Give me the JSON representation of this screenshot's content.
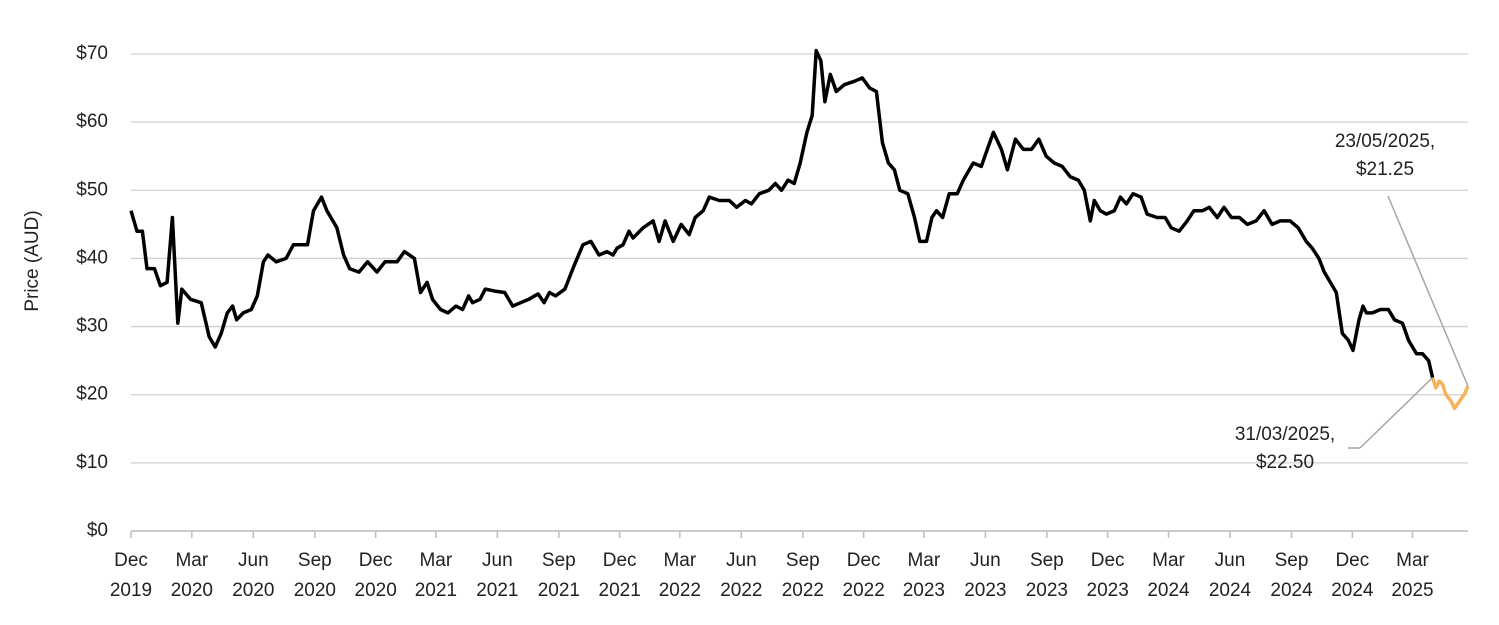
{
  "chart_data": {
    "type": "line",
    "y_label": "Price (AUD)",
    "ylim": [
      0,
      70
    ],
    "yticks": [
      {
        "value": 0,
        "label": "$0"
      },
      {
        "value": 10,
        "label": "$10"
      },
      {
        "value": 20,
        "label": "$20"
      },
      {
        "value": 30,
        "label": "$30"
      },
      {
        "value": 40,
        "label": "$40"
      },
      {
        "value": 50,
        "label": "$50"
      },
      {
        "value": 60,
        "label": "$60"
      },
      {
        "value": 70,
        "label": "$70"
      }
    ],
    "xlim": [
      "2019-12-01",
      "2025-05-23"
    ],
    "xticks": [
      {
        "value": "2019-12-01",
        "label": "Dec 2019"
      },
      {
        "value": "2020-03-01",
        "label": "Mar 2020"
      },
      {
        "value": "2020-06-01",
        "label": "Jun 2020"
      },
      {
        "value": "2020-09-01",
        "label": "Sep 2020"
      },
      {
        "value": "2020-12-01",
        "label": "Dec 2020"
      },
      {
        "value": "2021-03-01",
        "label": "Mar 2021"
      },
      {
        "value": "2021-06-01",
        "label": "Jun 2021"
      },
      {
        "value": "2021-09-01",
        "label": "Sep 2021"
      },
      {
        "value": "2021-12-01",
        "label": "Dec 2021"
      },
      {
        "value": "2022-03-01",
        "label": "Mar 2022"
      },
      {
        "value": "2022-06-01",
        "label": "Jun 2022"
      },
      {
        "value": "2022-09-01",
        "label": "Sep 2022"
      },
      {
        "value": "2022-12-01",
        "label": "Dec 2022"
      },
      {
        "value": "2023-03-01",
        "label": "Mar 2023"
      },
      {
        "value": "2023-06-01",
        "label": "Jun 2023"
      },
      {
        "value": "2023-09-01",
        "label": "Sep 2023"
      },
      {
        "value": "2023-12-01",
        "label": "Dec 2023"
      },
      {
        "value": "2024-03-01",
        "label": "Mar 2024"
      },
      {
        "value": "2024-06-01",
        "label": "Jun 2024"
      },
      {
        "value": "2024-09-01",
        "label": "Sep 2024"
      },
      {
        "value": "2024-12-01",
        "label": "Dec 2024"
      },
      {
        "value": "2025-03-01",
        "label": "Mar 2025"
      }
    ],
    "grid": true,
    "series": [
      {
        "color": "#000000",
        "x": [
          "2019-12-01",
          "2019-12-10",
          "2019-12-18",
          "2019-12-25",
          "2020-01-05",
          "2020-01-14",
          "2020-01-24",
          "2020-02-01",
          "2020-02-09",
          "2020-02-15",
          "2020-02-28",
          "2020-03-15",
          "2020-03-27",
          "2020-04-05",
          "2020-04-14",
          "2020-04-23",
          "2020-05-01",
          "2020-05-07",
          "2020-05-17",
          "2020-05-29",
          "2020-06-07",
          "2020-06-16",
          "2020-06-23",
          "2020-07-05",
          "2020-07-20",
          "2020-07-31",
          "2020-08-12",
          "2020-08-21",
          "2020-08-30",
          "2020-09-11",
          "2020-09-19",
          "2020-10-04",
          "2020-10-14",
          "2020-10-23",
          "2020-11-06",
          "2020-11-19",
          "2020-12-03",
          "2020-12-15",
          "2021-01-02",
          "2021-01-13",
          "2021-01-28",
          "2021-02-06",
          "2021-02-16",
          "2021-02-24",
          "2021-03-08",
          "2021-03-19",
          "2021-03-31",
          "2021-04-10",
          "2021-04-19",
          "2021-04-25",
          "2021-05-06",
          "2021-05-14",
          "2021-05-28",
          "2021-06-12",
          "2021-06-24",
          "2021-07-06",
          "2021-07-18",
          "2021-08-01",
          "2021-08-10",
          "2021-08-18",
          "2021-08-27",
          "2021-09-10",
          "2021-09-22",
          "2021-10-07",
          "2021-10-19",
          "2021-10-31",
          "2021-11-12",
          "2021-11-21",
          "2021-11-27",
          "2021-12-06",
          "2021-12-15",
          "2021-12-21",
          "2022-01-05",
          "2022-01-20",
          "2022-01-29",
          "2022-02-07",
          "2022-02-19",
          "2022-03-03",
          "2022-03-15",
          "2022-03-24",
          "2022-04-05",
          "2022-04-14",
          "2022-04-29",
          "2022-05-14",
          "2022-05-25",
          "2022-06-07",
          "2022-06-16",
          "2022-06-28",
          "2022-07-12",
          "2022-07-22",
          "2022-07-31",
          "2022-08-10",
          "2022-08-19",
          "2022-08-28",
          "2022-09-07",
          "2022-09-15",
          "2022-09-21",
          "2022-09-28",
          "2022-10-04",
          "2022-10-12",
          "2022-10-21",
          "2022-11-02",
          "2022-11-17",
          "2022-11-29",
          "2022-12-10",
          "2022-12-20",
          "2022-12-29",
          "2023-01-07",
          "2023-01-16",
          "2023-01-24",
          "2023-02-05",
          "2023-02-15",
          "2023-02-23",
          "2023-03-05",
          "2023-03-13",
          "2023-03-20",
          "2023-03-29",
          "2023-04-08",
          "2023-04-20",
          "2023-04-29",
          "2023-05-08",
          "2023-05-14",
          "2023-05-26",
          "2023-06-04",
          "2023-06-13",
          "2023-06-25",
          "2023-07-04",
          "2023-07-16",
          "2023-07-28",
          "2023-08-09",
          "2023-08-20",
          "2023-08-31",
          "2023-09-12",
          "2023-09-24",
          "2023-10-06",
          "2023-10-18",
          "2023-10-27",
          "2023-11-05",
          "2023-11-11",
          "2023-11-20",
          "2023-11-29",
          "2023-12-11",
          "2023-12-20",
          "2023-12-29",
          "2024-01-08",
          "2024-01-20",
          "2024-01-29",
          "2024-02-13",
          "2024-02-25",
          "2024-03-05",
          "2024-03-17",
          "2024-03-29",
          "2024-04-08",
          "2024-04-21",
          "2024-05-01",
          "2024-05-13",
          "2024-05-23",
          "2024-06-03",
          "2024-06-15",
          "2024-06-27",
          "2024-07-10",
          "2024-07-22",
          "2024-08-03",
          "2024-08-15",
          "2024-08-30",
          "2024-09-11",
          "2024-09-23",
          "2024-10-02",
          "2024-10-12",
          "2024-10-20",
          "2024-10-29",
          "2024-11-07",
          "2024-11-16",
          "2024-11-25",
          "2024-12-02",
          "2024-12-11",
          "2024-12-17",
          "2024-12-22",
          "2024-12-31",
          "2025-01-12",
          "2025-01-24",
          "2025-02-02",
          "2025-02-14",
          "2025-02-23",
          "2025-03-07",
          "2025-03-16",
          "2025-03-25",
          "2025-03-31"
        ],
        "values": [
          47,
          44,
          44,
          38.5,
          38.5,
          36,
          36.5,
          46,
          30.5,
          35.5,
          34,
          33.5,
          28.5,
          27,
          29,
          32,
          33,
          31,
          32,
          32.5,
          34.5,
          39.5,
          40.5,
          39.5,
          40,
          42,
          42,
          42,
          47,
          49,
          47,
          44.5,
          40.5,
          38.5,
          38,
          39.5,
          38,
          39.5,
          39.5,
          41,
          40,
          35,
          36.5,
          34,
          32.5,
          32,
          33,
          32.5,
          34.5,
          33.5,
          34,
          35.5,
          35.2,
          35,
          33,
          33.5,
          34,
          34.8,
          33.5,
          35,
          34.5,
          35.5,
          38.5,
          42,
          42.5,
          40.5,
          41,
          40.5,
          41.5,
          42,
          44,
          43,
          44.5,
          45.5,
          42.5,
          45.5,
          42.5,
          45,
          43.5,
          46,
          47,
          49,
          48.5,
          48.5,
          47.5,
          48.5,
          48,
          49.5,
          50,
          51,
          50,
          51.5,
          51,
          54,
          58.5,
          61,
          70.5,
          69,
          63,
          67,
          64.5,
          65.5,
          66,
          66.5,
          65,
          64.5,
          57,
          54,
          53,
          50,
          49.5,
          46,
          42.5,
          42.5,
          46,
          47,
          46,
          49.5,
          49.5,
          51.5,
          53,
          54,
          53.5,
          56,
          58.5,
          56,
          53,
          57.5,
          56,
          56,
          57.5,
          55,
          54,
          53.5,
          52,
          51.5,
          50,
          45.5,
          48.5,
          47,
          46.5,
          47,
          49,
          48,
          49.5,
          49,
          46.5,
          46,
          46,
          44.5,
          44,
          45.5,
          47,
          47,
          47.5,
          46,
          47.5,
          46,
          46,
          45,
          45.5,
          47,
          45,
          45.5,
          45.5,
          44.5,
          42.5,
          41.5,
          40,
          38,
          36.5,
          35,
          29,
          28,
          26.5,
          31,
          33,
          32,
          32,
          32.5,
          32.5,
          31,
          30.5,
          28,
          26,
          26,
          25,
          22.5
        ]
      },
      {
        "color": "#f5b45c",
        "x": [
          "2025-03-31",
          "2025-04-05",
          "2025-04-10",
          "2025-04-15",
          "2025-04-20",
          "2025-04-28",
          "2025-05-03",
          "2025-05-10",
          "2025-05-17",
          "2025-05-23"
        ],
        "values": [
          22.5,
          21,
          22,
          21.5,
          20,
          19,
          18,
          19,
          20,
          21.25
        ]
      }
    ],
    "annotations": [
      {
        "lines": [
          "31/03/2025,",
          "$22.50"
        ],
        "x": "2025-03-31",
        "y": 22.5
      },
      {
        "lines": [
          "23/05/2025,",
          "$21.25"
        ],
        "x": "2025-05-23",
        "y": 21.25
      }
    ]
  }
}
